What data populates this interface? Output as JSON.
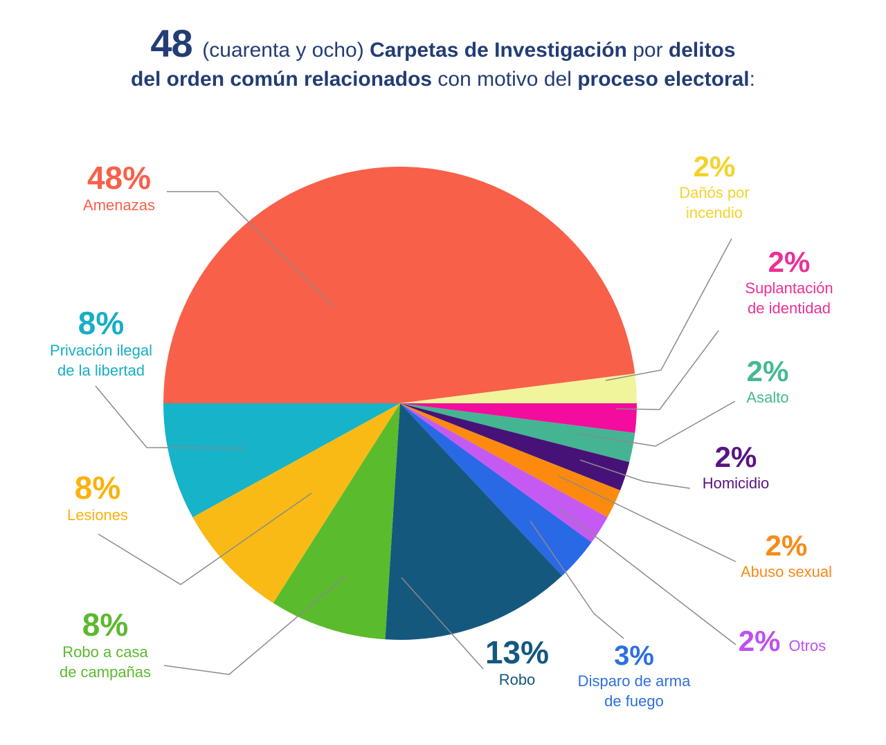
{
  "title": {
    "color": "#223D75",
    "full_text": "48 (cuarenta y ocho) Carpetas de Investigación por delitos del orden común relacionados con motivo del proceso electoral:",
    "line1": [
      {
        "text": "48 ",
        "bold": true,
        "xl": true
      },
      {
        "text": "(cuarenta y ocho) ",
        "bold": false
      },
      {
        "text": "Carpetas de Investigación",
        "bold": true
      },
      {
        "text": " por ",
        "bold": false
      },
      {
        "text": "delitos",
        "bold": true
      }
    ],
    "line2": [
      {
        "text": "del orden común relacionados",
        "bold": true
      },
      {
        "text": " con motivo del ",
        "bold": false
      },
      {
        "text": "proceso electoral",
        "bold": true
      },
      {
        "text": ":",
        "bold": false
      }
    ]
  },
  "chart_data": {
    "type": "pie",
    "title": "48 Carpetas de Investigación por delitos del orden común relacionados con motivo del proceso electoral",
    "total_cases": 48,
    "units": "percent",
    "start_angle_deg": 180,
    "direction": "clockwise",
    "legend_position": "around-callouts",
    "leader_line_color": "#8a8a8a",
    "slices": [
      {
        "id": "amenazas",
        "label": "Amenazas",
        "label_lines": [
          "Amenazas"
        ],
        "pct": 48,
        "value_label": "48%",
        "color": "#F8604A",
        "text_color": "#F8604A"
      },
      {
        "id": "danos-por-incendio",
        "label": "Dañós por incendio",
        "label_lines": [
          "Dañós por",
          "incendio"
        ],
        "pct": 2,
        "value_label": "2%",
        "color": "#F0F49B",
        "text_color": "#F4D22A"
      },
      {
        "id": "suplantacion-de-identidad",
        "label": "Suplantación de identidad",
        "label_lines": [
          "Suplantación",
          "de identidad"
        ],
        "pct": 2,
        "value_label": "2%",
        "color": "#F30D9E",
        "text_color": "#ED2F96"
      },
      {
        "id": "asalto",
        "label": "Asalto",
        "label_lines": [
          "Asalto"
        ],
        "pct": 2,
        "value_label": "2%",
        "color": "#44B492",
        "text_color": "#44B992"
      },
      {
        "id": "homicidio",
        "label": "Homicidio",
        "label_lines": [
          "Homicidio"
        ],
        "pct": 2,
        "value_label": "2%",
        "color": "#471277",
        "text_color": "#5A1581"
      },
      {
        "id": "abuso-sexual",
        "label": "Abuso sexual",
        "label_lines": [
          "Abuso sexual"
        ],
        "pct": 2,
        "value_label": "2%",
        "color": "#FB8A0F",
        "text_color": "#F78A18"
      },
      {
        "id": "otros",
        "label": "Otros",
        "label_lines": [
          "Otros"
        ],
        "pct": 2,
        "value_label": "2%",
        "color": "#C55AF3",
        "text_color": "#BE50F0"
      },
      {
        "id": "disparo-de-arma-de-fuego",
        "label": "Disparo de arma de fuego",
        "label_lines": [
          "Disparo de arma",
          "de fuego"
        ],
        "pct": 3,
        "value_label": "3%",
        "color": "#2A69E5",
        "text_color": "#2D6FE0"
      },
      {
        "id": "robo",
        "label": "Robo",
        "label_lines": [
          "Robo"
        ],
        "pct": 13,
        "value_label": "13%",
        "color": "#15587E",
        "text_color": "#14577F"
      },
      {
        "id": "robo-a-casa-de-campanas",
        "label": "Robo a casa de campañas",
        "label_lines": [
          "Robo a casa",
          "de campañas"
        ],
        "pct": 8,
        "value_label": "8%",
        "color": "#5ABB2D",
        "text_color": "#5CB92F"
      },
      {
        "id": "lesiones",
        "label": "Lesiones",
        "label_lines": [
          "Lesiones"
        ],
        "pct": 8,
        "value_label": "8%",
        "color": "#F9BA16",
        "text_color": "#FBB20D"
      },
      {
        "id": "privacion-ilegal-de-la-libertad",
        "label": "Privación ilegal de la libertad",
        "label_lines": [
          "Privación ilegal",
          "de la libertad"
        ],
        "pct": 8,
        "value_label": "8%",
        "color": "#16B3C9",
        "text_color": "#16AEC6"
      }
    ]
  }
}
